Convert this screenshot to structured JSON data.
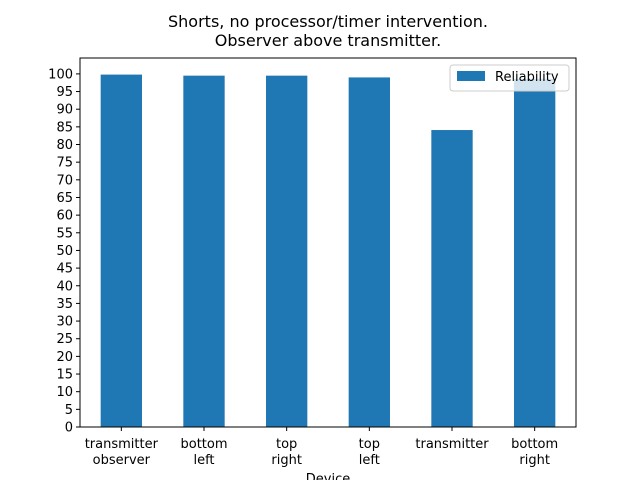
{
  "chart_data": {
    "type": "bar",
    "title": [
      "Shorts, no processor/timer intervention.",
      "Observer above transmitter."
    ],
    "xlabel": "Device",
    "ylabel": "",
    "categories": [
      [
        "transmitter",
        "observer"
      ],
      [
        "bottom",
        "left"
      ],
      [
        "top",
        "right"
      ],
      [
        "top",
        "left"
      ],
      [
        "transmitter"
      ],
      [
        "bottom",
        "right"
      ]
    ],
    "series": [
      {
        "name": "Reliability",
        "color": "#1f77b4",
        "values": [
          99.8,
          99.5,
          99.5,
          99.0,
          84.1,
          98.6
        ]
      }
    ],
    "ylim": [
      0,
      104.5
    ],
    "yticks": [
      0,
      5,
      10,
      15,
      20,
      25,
      30,
      35,
      40,
      45,
      50,
      55,
      60,
      65,
      70,
      75,
      80,
      85,
      90,
      95,
      100
    ],
    "grid": false,
    "legend_position": "top-right"
  }
}
